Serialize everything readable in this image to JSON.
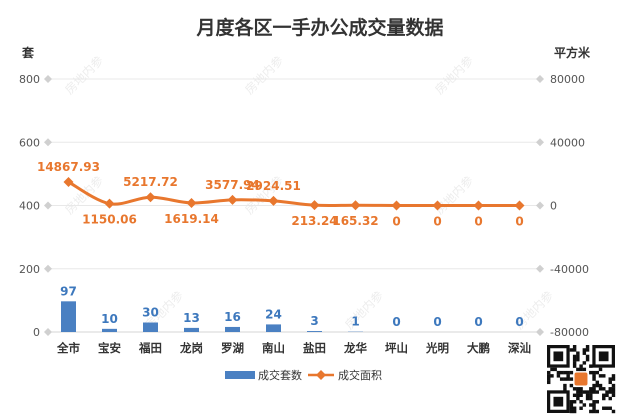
{
  "chart_data": {
    "type": "bar",
    "title": "月度各区一手办公成交量数据",
    "ylabel_left": "套",
    "ylabel_right": "平方米",
    "categories": [
      "全市",
      "宝安",
      "福田",
      "龙岗",
      "罗湖",
      "南山",
      "盐田",
      "龙华",
      "坪山",
      "光明",
      "大鹏",
      "深汕"
    ],
    "series": [
      {
        "name": "成交套数",
        "type": "bar",
        "axis": "left",
        "color": "#4a80c2",
        "values": [
          97,
          10,
          30,
          13,
          16,
          24,
          3,
          1,
          0,
          0,
          0,
          0
        ],
        "labels": [
          "97",
          "10",
          "30",
          "13",
          "16",
          "24",
          "3",
          "1",
          "0",
          "0",
          "0",
          "0"
        ]
      },
      {
        "name": "成交面积",
        "type": "line",
        "axis": "right",
        "color": "#e8772e",
        "values": [
          14867.93,
          1150.06,
          5217.72,
          1619.14,
          3577.94,
          2924.51,
          213.24,
          165.32,
          0,
          0,
          0,
          0
        ],
        "labels": [
          "14867.93",
          "1150.06",
          "5217.72",
          "1619.14",
          "3577.94",
          "2924.51",
          "213.24",
          "165.32",
          "0",
          "0",
          "0",
          "0"
        ]
      }
    ],
    "y_left": {
      "min": 0,
      "max": 800,
      "ticks": [
        "0",
        "200",
        "400",
        "600",
        "800"
      ]
    },
    "y_right": {
      "min": -80000,
      "max": 80000,
      "ticks": [
        "-80000",
        "-40000",
        "0",
        "40000",
        "80000"
      ]
    },
    "grid": true,
    "legend_position": "bottom",
    "watermark": "房地内参"
  }
}
